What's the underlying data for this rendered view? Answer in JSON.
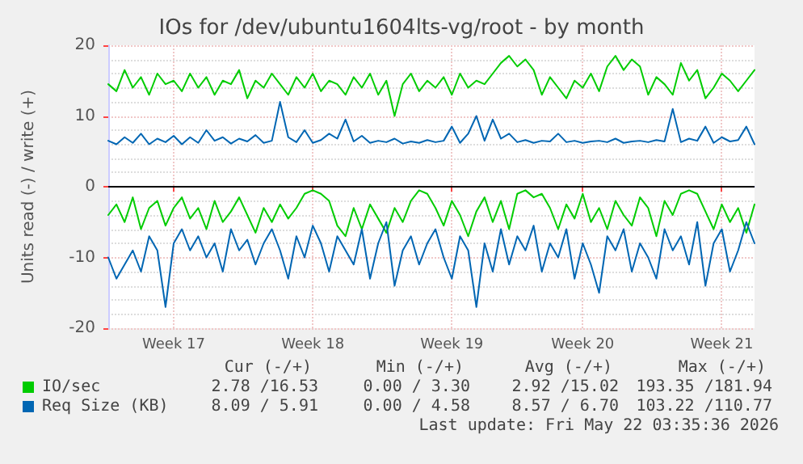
{
  "chart_data": {
    "type": "line",
    "title": "IOs for /dev/ubuntu1604lts-vg/root - by month",
    "ylabel": "Units read (-) / write (+)",
    "categories": [
      null,
      null,
      null,
      null,
      null,
      null,
      null,
      null,
      "Week 17",
      null,
      null,
      null,
      null,
      null,
      null,
      null,
      null,
      null,
      null,
      null,
      null,
      null,
      null,
      null,
      null,
      "Week 18",
      null,
      null,
      null,
      null,
      null,
      null,
      null,
      null,
      null,
      null,
      null,
      null,
      null,
      null,
      null,
      null,
      "Week 19",
      null,
      null,
      null,
      null,
      null,
      null,
      null,
      null,
      null,
      null,
      null,
      null,
      null,
      null,
      null,
      "Week 20",
      null,
      null,
      null,
      null,
      null,
      null,
      null,
      null,
      null,
      null,
      null,
      null,
      null,
      null,
      null,
      null,
      "Week 21",
      null,
      null,
      null,
      null
    ],
    "series": [
      {
        "name": "IO/sec",
        "color": "#00cc00",
        "values": [
          14.5,
          13.5,
          16.5,
          14,
          15.5,
          13,
          16,
          14.5,
          15,
          13.5,
          16,
          14,
          15.5,
          13,
          15,
          14.5,
          16.5,
          12.5,
          15,
          14,
          16,
          14.5,
          13,
          15.5,
          14,
          16,
          13.5,
          15,
          14.5,
          13,
          15.5,
          14,
          16,
          13,
          15,
          10,
          14.5,
          16,
          13.5,
          15,
          14,
          15.5,
          13,
          16,
          14,
          15,
          14.5,
          16,
          17.5,
          18.5,
          17,
          18,
          16.5,
          13,
          15.5,
          14,
          12.5,
          15,
          14,
          16,
          13.5,
          17,
          18.5,
          16.5,
          18,
          17,
          13,
          15.5,
          14.5,
          13,
          17.5,
          15,
          16.5,
          12.5,
          14,
          16,
          15,
          13.5,
          15,
          16.5
        ]
      },
      {
        "color": "#00cc00",
        "values": [
          -4,
          -2.5,
          -5,
          -1.5,
          -6,
          -3,
          -2,
          -5.5,
          -3,
          -1.5,
          -4.5,
          -3,
          -6,
          -2,
          -5,
          -3.5,
          -1.5,
          -4,
          -6.5,
          -3,
          -5,
          -2.5,
          -4.5,
          -3,
          -1,
          -0.5,
          -1,
          -2,
          -5.5,
          -7,
          -3,
          -6,
          -2.5,
          -4.5,
          -6.5,
          -3,
          -5,
          -2,
          -0.5,
          -1,
          -3,
          -5.5,
          -2,
          -4,
          -7,
          -3.5,
          -1.5,
          -5,
          -2,
          -6,
          -1,
          -0.5,
          -1.5,
          -1,
          -3,
          -6,
          -2.5,
          -4.5,
          -1,
          -5,
          -3,
          -6,
          -2,
          -4,
          -5.5,
          -1.5,
          -3,
          -7,
          -2,
          -4,
          -1,
          -0.5,
          -1,
          -3.5,
          -6,
          -2.5,
          -5,
          -3,
          -6.5,
          -2.5
        ]
      },
      {
        "name": "Req Size (KB)",
        "color": "#0066b3",
        "values": [
          6.5,
          6,
          7,
          6.2,
          7.5,
          6,
          6.8,
          6.3,
          7.2,
          6,
          7,
          6.2,
          8,
          6.5,
          7,
          6.1,
          6.8,
          6.4,
          7.3,
          6.2,
          6.5,
          12,
          7,
          6.3,
          8,
          6.2,
          6.6,
          7.5,
          6.8,
          9.5,
          6.4,
          7.2,
          6.2,
          6.5,
          6.3,
          6.8,
          6.1,
          6.4,
          6.2,
          6.6,
          6.3,
          6.5,
          8.5,
          6.2,
          7.5,
          10,
          6.5,
          9.5,
          6.8,
          7.5,
          6.3,
          6.6,
          6.2,
          6.5,
          6.4,
          7.5,
          6.3,
          6.5,
          6.2,
          6.4,
          6.5,
          6.3,
          6.8,
          6.2,
          6.4,
          6.5,
          6.3,
          6.6,
          6.4,
          11,
          6.3,
          6.8,
          6.5,
          8.5,
          6.2,
          7,
          6.4,
          6.6,
          8.5,
          6
        ]
      },
      {
        "color": "#0066b3",
        "values": [
          -10,
          -13,
          -11,
          -9,
          -12,
          -7,
          -9,
          -17,
          -8,
          -6,
          -9,
          -7,
          -10,
          -8,
          -12,
          -6,
          -9,
          -7.5,
          -11,
          -8,
          -6,
          -9,
          -13,
          -7,
          -10,
          -5.5,
          -8,
          -12,
          -7,
          -9,
          -11,
          -6,
          -13,
          -8,
          -5,
          -14,
          -9,
          -7,
          -11,
          -8,
          -6,
          -10,
          -13,
          -7,
          -9,
          -17,
          -8,
          -12,
          -6,
          -11,
          -7,
          -9,
          -5.5,
          -12,
          -8,
          -10,
          -6,
          -13,
          -8,
          -11,
          -15,
          -7,
          -9,
          -6,
          -12,
          -8,
          -10,
          -13,
          -6,
          -9,
          -7,
          -11,
          -5,
          -14,
          -8,
          -6,
          -12,
          -9,
          -5,
          -8
        ]
      }
    ],
    "ylim": [
      -20,
      20
    ],
    "yticks": [
      -20,
      -10,
      0,
      10,
      20
    ],
    "ref_lines": [
      {
        "axis": "y",
        "value": 0,
        "color": "#000000"
      }
    ],
    "grid": true,
    "legend": "bottom",
    "marker": "none",
    "line_style": "solid",
    "annotations": [
      "Cur (-/+)",
      "Min (-/+)",
      "Avg (-/+)",
      "Max (-/+)",
      "2.78 /16.53",
      "0.00 / 3.30",
      "2.92 /15.02",
      "193.35 /181.94",
      "8.09 / 5.91",
      "0.00 / 4.58",
      "8.57 / 6.70",
      "103.22 /110.77",
      "Last update: Fri May 22 03:35:36 2026"
    ]
  }
}
